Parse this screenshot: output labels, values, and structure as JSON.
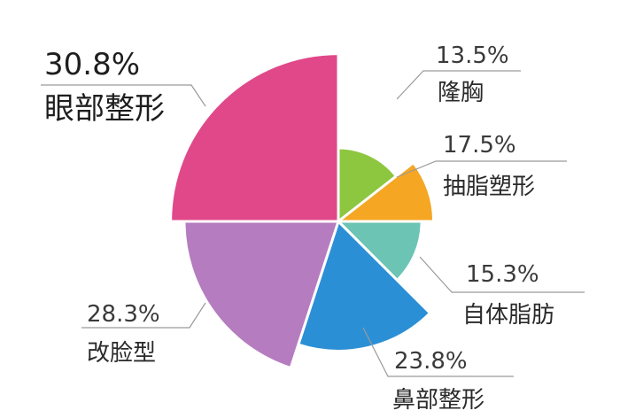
{
  "chart_data": {
    "type": "pie",
    "variant": "polar-area",
    "title": "",
    "slices": [
      {
        "label": "隆胸",
        "value": 13.5,
        "value_label": "13.5%",
        "color": "#8dc63f"
      },
      {
        "label": "抽脂塑形",
        "value": 17.5,
        "value_label": "17.5%",
        "color": "#f5a623"
      },
      {
        "label": "自体脂肪",
        "value": 15.3,
        "value_label": "15.3%",
        "color": "#6cc4b5"
      },
      {
        "label": "鼻部整形",
        "value": 23.8,
        "value_label": "23.8%",
        "color": "#2b8fd6"
      },
      {
        "label": "改脸型",
        "value": 28.3,
        "value_label": "28.3%",
        "color": "#b57cc0"
      },
      {
        "label": "眼部整形",
        "value": 30.8,
        "value_label": "30.8%",
        "color": "#e0488a"
      }
    ]
  }
}
